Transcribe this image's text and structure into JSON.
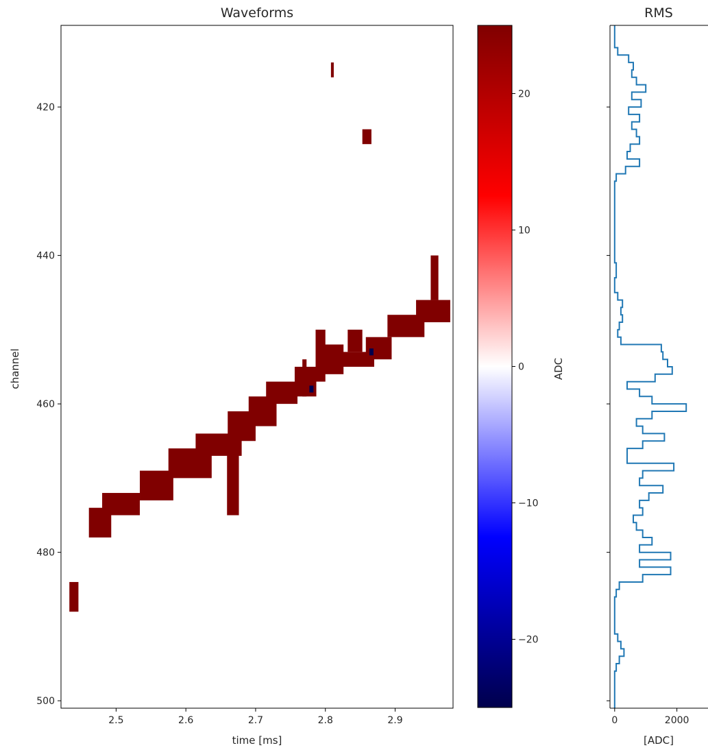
{
  "chart_data": [
    {
      "type": "heatmap",
      "title": "Waveforms",
      "xlabel": "time [ms]",
      "ylabel": "channel",
      "xlim": [
        2.421,
        2.983
      ],
      "ylim": [
        501,
        409
      ],
      "x_ticks": [
        2.5,
        2.6,
        2.7,
        2.8,
        2.9
      ],
      "x_tick_labels": [
        "2.5",
        "2.6",
        "2.7",
        "2.8",
        "2.9"
      ],
      "y_ticks": [
        420,
        440,
        460,
        480,
        500
      ],
      "y_tick_labels": [
        "420",
        "440",
        "460",
        "480",
        "500"
      ],
      "grid": false,
      "colormap": "seismic",
      "saturated_color": "#800000",
      "negative_color": "#00004c",
      "regions": [
        {
          "x": [
            2.808,
            2.812
          ],
          "y": [
            414,
            416
          ]
        },
        {
          "x": [
            2.853,
            2.866
          ],
          "y": [
            423,
            425
          ]
        },
        {
          "x": [
            2.433,
            2.446
          ],
          "y": [
            484,
            488
          ]
        },
        {
          "x": [
            2.461,
            2.493
          ],
          "y": [
            474,
            478
          ]
        },
        {
          "x": [
            2.48,
            2.534
          ],
          "y": [
            472,
            475
          ]
        },
        {
          "x": [
            2.534,
            2.582
          ],
          "y": [
            469,
            473
          ]
        },
        {
          "x": [
            2.575,
            2.637
          ],
          "y": [
            466,
            470
          ]
        },
        {
          "x": [
            2.614,
            2.68
          ],
          "y": [
            464,
            467
          ]
        },
        {
          "x": [
            2.66,
            2.7
          ],
          "y": [
            461,
            465
          ]
        },
        {
          "x": [
            2.659,
            2.676
          ],
          "y": [
            466,
            475
          ]
        },
        {
          "x": [
            2.69,
            2.73
          ],
          "y": [
            459,
            463
          ]
        },
        {
          "x": [
            2.715,
            2.76
          ],
          "y": [
            457,
            460
          ]
        },
        {
          "x": [
            2.756,
            2.787
          ],
          "y": [
            455,
            459
          ]
        },
        {
          "x": [
            2.767,
            2.773
          ],
          "y": [
            454,
            459
          ]
        },
        {
          "x": [
            2.786,
            2.8
          ],
          "y": [
            450,
            457
          ]
        },
        {
          "x": [
            2.799,
            2.826
          ],
          "y": [
            452,
            456
          ]
        },
        {
          "x": [
            2.819,
            2.87
          ],
          "y": [
            453,
            455
          ]
        },
        {
          "x": [
            2.832,
            2.853
          ],
          "y": [
            450,
            453
          ]
        },
        {
          "x": [
            2.858,
            2.895
          ],
          "y": [
            451,
            454
          ]
        },
        {
          "x": [
            2.889,
            2.942
          ],
          "y": [
            448,
            451
          ]
        },
        {
          "x": [
            2.93,
            2.979
          ],
          "y": [
            446,
            449
          ]
        },
        {
          "x": [
            2.951,
            2.962
          ],
          "y": [
            440,
            446
          ]
        }
      ],
      "negative_points": [
        {
          "x": 2.78,
          "y": 458
        },
        {
          "x": 2.866,
          "y": 453
        }
      ]
    },
    {
      "type": "heatmap-colorbar",
      "ylabel": "ADC",
      "ylim": [
        -25,
        25
      ],
      "ticks": [
        20,
        10,
        0,
        -10,
        -20
      ],
      "tick_labels": [
        "20",
        "10",
        "0",
        "−10",
        "−20"
      ],
      "colors": [
        "#800000",
        "#ff0000",
        "#ffffff",
        "#0000ff",
        "#00004c"
      ]
    },
    {
      "type": "line",
      "title": "RMS",
      "xlabel": "[ADC]",
      "xlim": [
        -150,
        3000
      ],
      "ylim": [
        501,
        409
      ],
      "x_ticks": [
        0,
        2000
      ],
      "x_tick_labels": [
        "0",
        "2000"
      ],
      "y_ticks": [
        420,
        440,
        460,
        480,
        500
      ],
      "step": true,
      "color": "#1f77b4",
      "series": [
        {
          "x": [
            0,
            0,
            0,
            100,
            450,
            600,
            550,
            700,
            1000,
            550,
            850,
            450,
            800,
            550,
            700,
            800,
            500,
            400,
            800,
            350,
            50,
            0,
            0,
            0,
            0,
            0,
            0,
            0,
            0,
            0,
            0,
            0,
            50,
            50,
            0,
            0,
            100,
            250,
            200,
            250,
            150,
            100,
            200,
            1500,
            1550,
            1700,
            1850,
            1300,
            400,
            800,
            1200,
            2300,
            1200,
            700,
            900,
            1600,
            900,
            400,
            400,
            1900,
            900,
            800,
            1550,
            1100,
            800,
            900,
            600,
            700,
            900,
            1200,
            800,
            1800,
            800,
            1800,
            900,
            150,
            50,
            0,
            0,
            0,
            0,
            0,
            100,
            200,
            300,
            150,
            50,
            0,
            0,
            0,
            0,
            0,
            0,
            0,
            0,
            0,
            50,
            0,
            0
          ]
        }
      ]
    }
  ]
}
